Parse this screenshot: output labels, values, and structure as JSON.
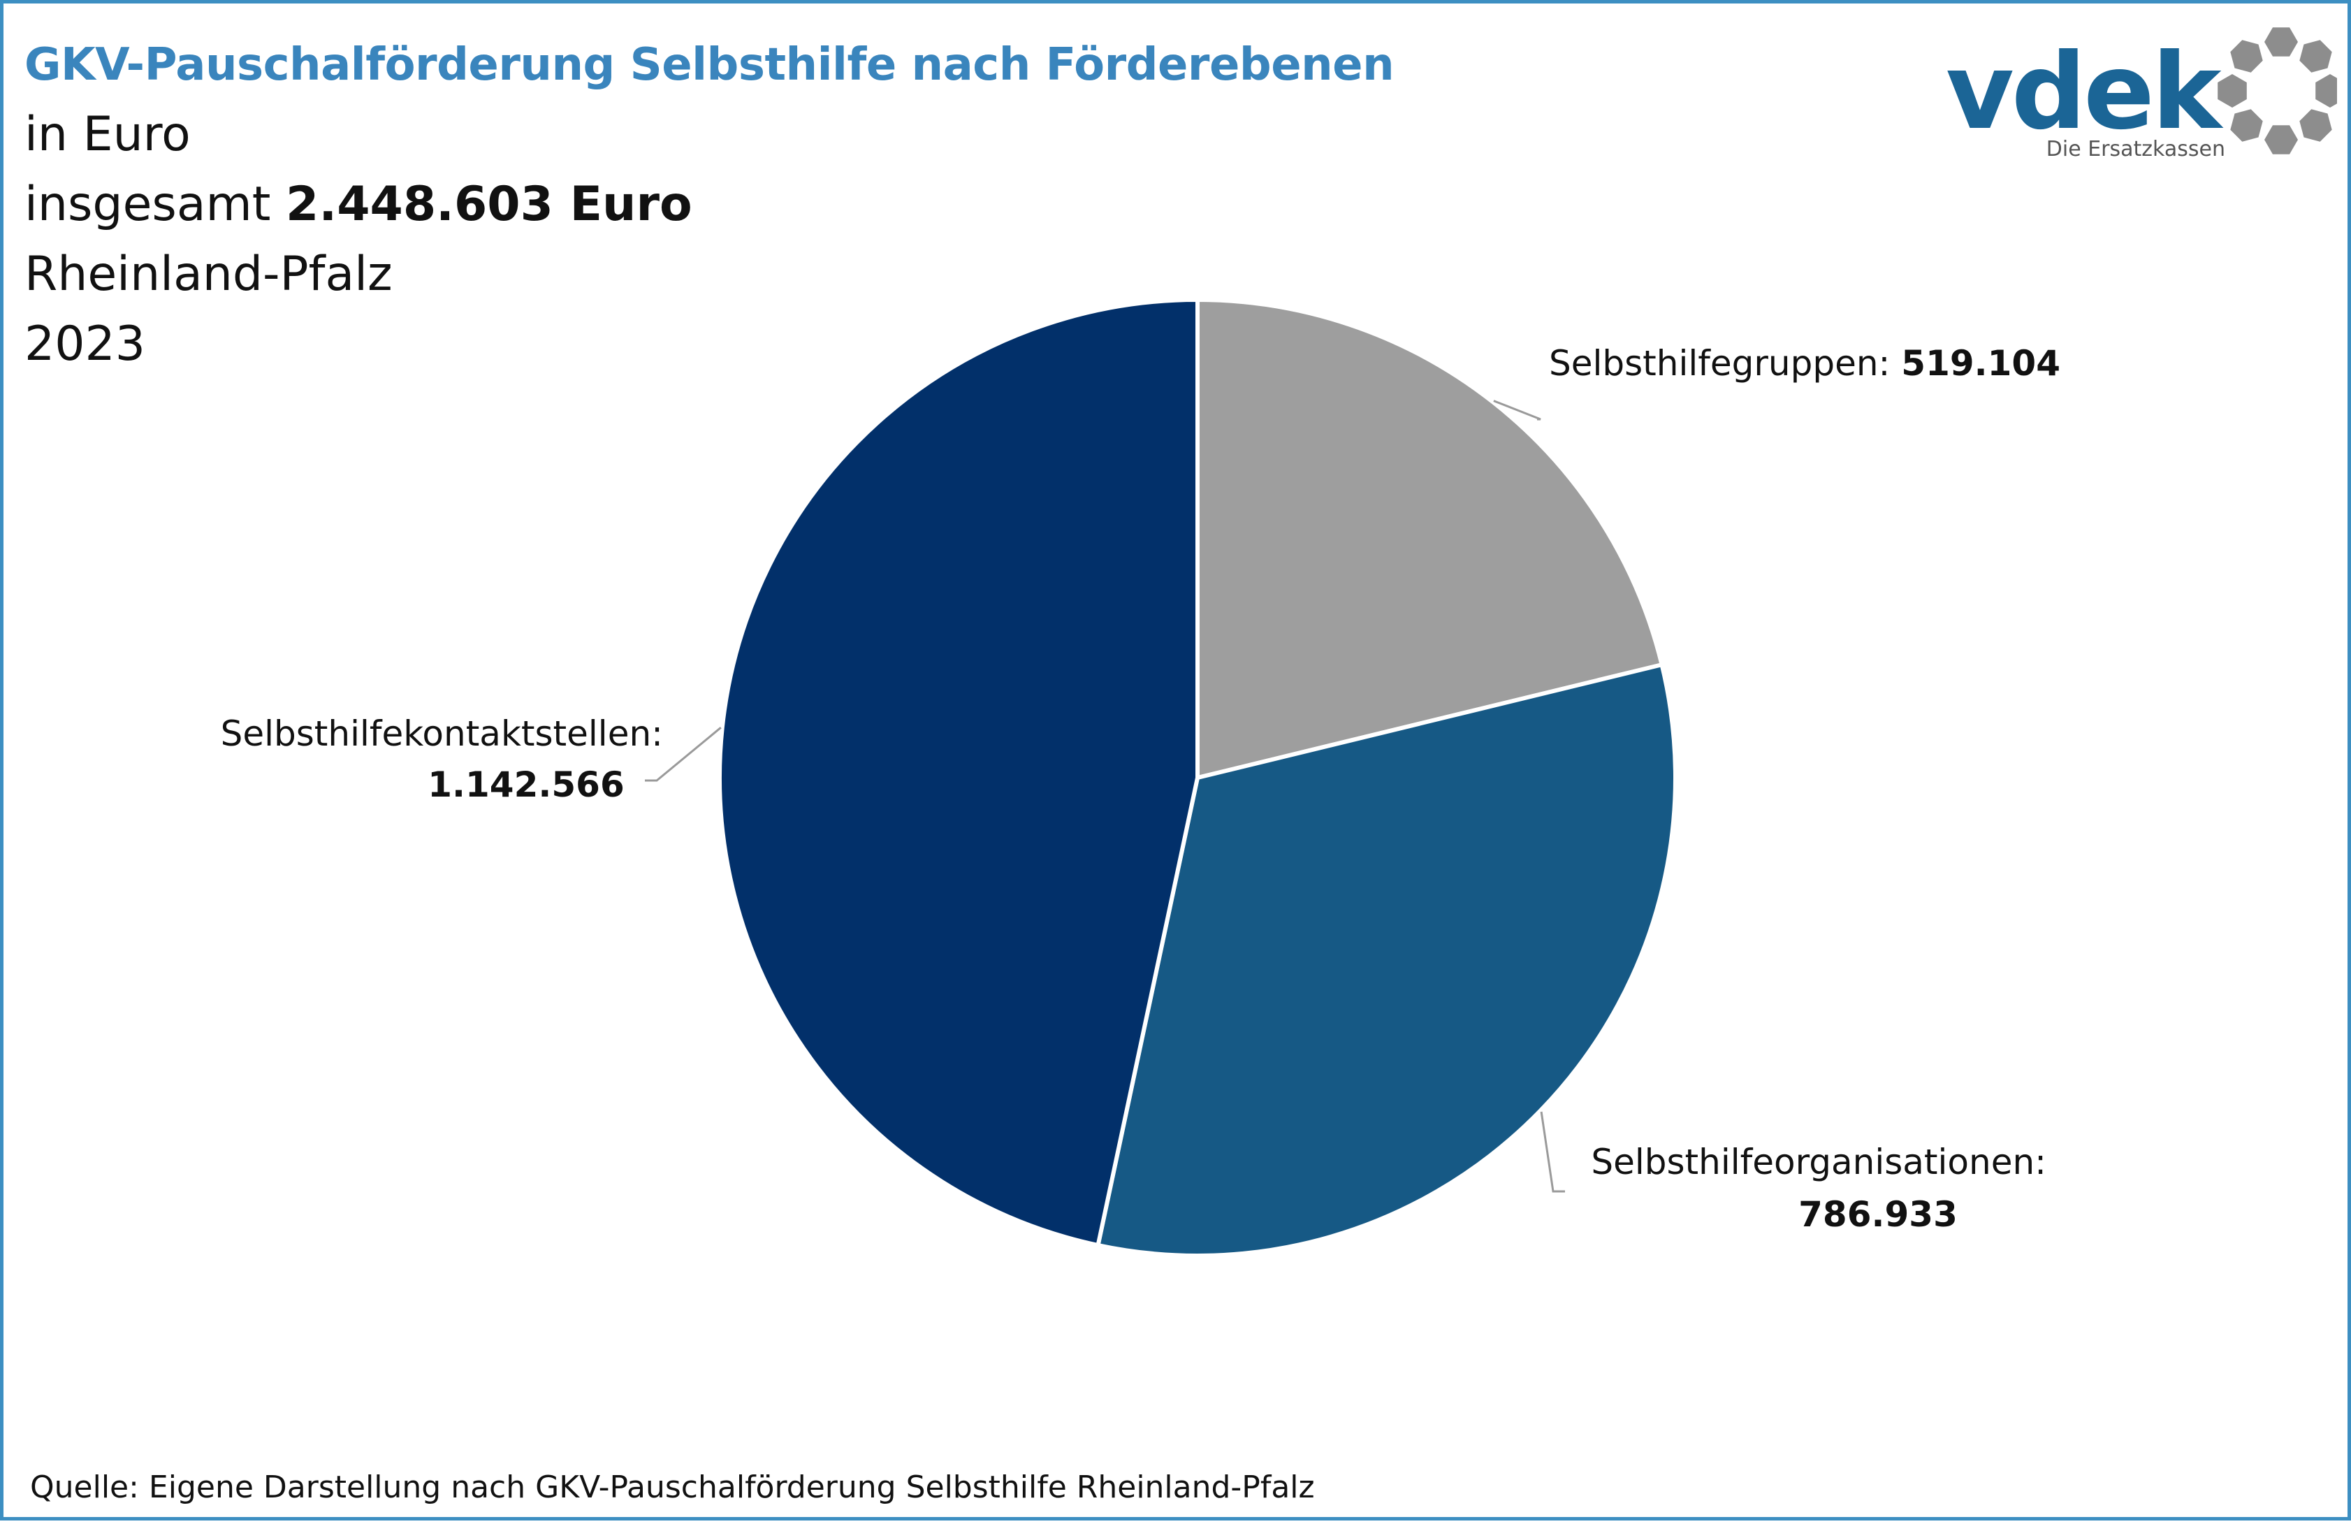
{
  "header": {
    "title": "GKV-Pauschalförderung Selbsthilfe nach Förderebenen",
    "unit_line": "in Euro",
    "total_prefix": "insgesamt",
    "total_value": "2.448.603 Euro",
    "region": "Rheinland-Pfalz",
    "year": "2023"
  },
  "logo": {
    "wordmark": "vdek",
    "tagline": "Die Ersatzkassen"
  },
  "colors": {
    "title": "#3a85bd",
    "frame": "#3d8fc2",
    "logo_blue": "#1b6596",
    "logo_gray": "#8d8d8d"
  },
  "chart_data": {
    "type": "pie",
    "unit": "Euro",
    "total": 2448603,
    "start_angle_deg": 0,
    "direction": "clockwise",
    "slices": [
      {
        "label": "Selbsthilfegruppen:",
        "value": 519104,
        "value_text": "519.104",
        "color": "#9e9e9e"
      },
      {
        "label": "Selbsthilfeorganisationen:",
        "value": 786933,
        "value_text": "786.933",
        "color": "#165985"
      },
      {
        "label": "Selbsthilfekontaktstellen:",
        "value": 1142566,
        "value_text": "1.142.566",
        "color": "#02306a"
      }
    ]
  },
  "source": "Quelle: Eigene Darstellung nach GKV-Pauschalförderung Selbsthilfe Rheinland-Pfalz"
}
